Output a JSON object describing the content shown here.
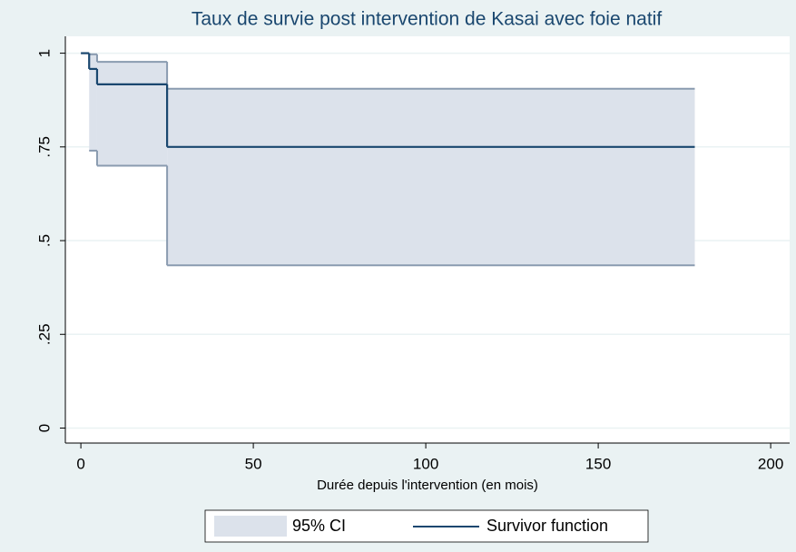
{
  "chart_data": {
    "type": "step",
    "title": "Taux de survie post intervention de Kasai avec foie natif",
    "x_label": "Durée depuis l'intervention (en mois)",
    "x": [
      0,
      2.4,
      4.7,
      25,
      178
    ],
    "series": [
      {
        "name": "Survivor function",
        "color": "#1a476f",
        "values": [
          1,
          0.958,
          0.917,
          0.75,
          0.75
        ]
      }
    ],
    "ci": {
      "name": "95% CI",
      "color": "#dce2eb",
      "edge_color": "#8a9bb0",
      "lower": [
        null,
        0.74,
        0.7,
        0.434,
        0.434
      ],
      "upper": [
        null,
        0.997,
        0.977,
        0.905,
        0.905
      ]
    },
    "xlim": [
      -4.5,
      205.5
    ],
    "xticks": [
      0,
      50,
      100,
      150,
      200
    ],
    "ylim": [
      -0.04,
      1.045
    ],
    "yticks": [
      0,
      {
        "value": 0.25,
        "label": ".25"
      },
      {
        "value": 0.5,
        "label": ".5"
      },
      {
        "value": 0.75,
        "label": ".75"
      },
      1
    ],
    "grid": true
  }
}
